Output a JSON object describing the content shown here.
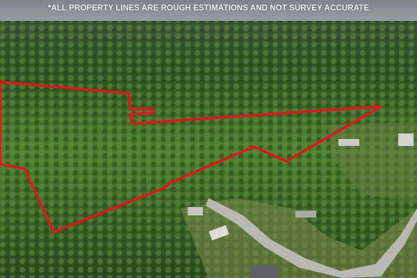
{
  "caption": "*ALL PROPERTY LINES ARE ROUGH ESTIMATIONS AND NOT SURVEY ACCURATE",
  "colors": {
    "sky": "#8a9099",
    "forest": "#3d6a2a",
    "property_line": "#e8121a",
    "road": "#b9b8b3"
  }
}
